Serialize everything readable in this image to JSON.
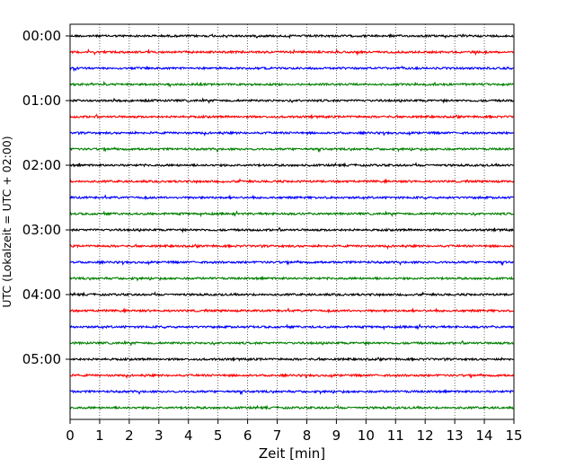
{
  "chart_data": {
    "type": "line",
    "title": "",
    "xlabel": "Zeit  [min]",
    "ylabel": "UTC (Lokalzeit = UTC + 02:00)",
    "xlim": [
      0,
      15
    ],
    "x_ticks": [
      "0",
      "1",
      "2",
      "3",
      "4",
      "5",
      "6",
      "7",
      "8",
      "9",
      "10",
      "11",
      "12",
      "13",
      "14",
      "15"
    ],
    "y_ticks": [
      "00:00",
      "01:00",
      "02:00",
      "03:00",
      "04:00",
      "05:00"
    ],
    "trace_interval_min": 15,
    "trace_count": 24,
    "trace_colors": [
      "#000000",
      "#ff0000",
      "#0000ff",
      "#008000"
    ],
    "grid": "vertical dotted at each minute"
  }
}
